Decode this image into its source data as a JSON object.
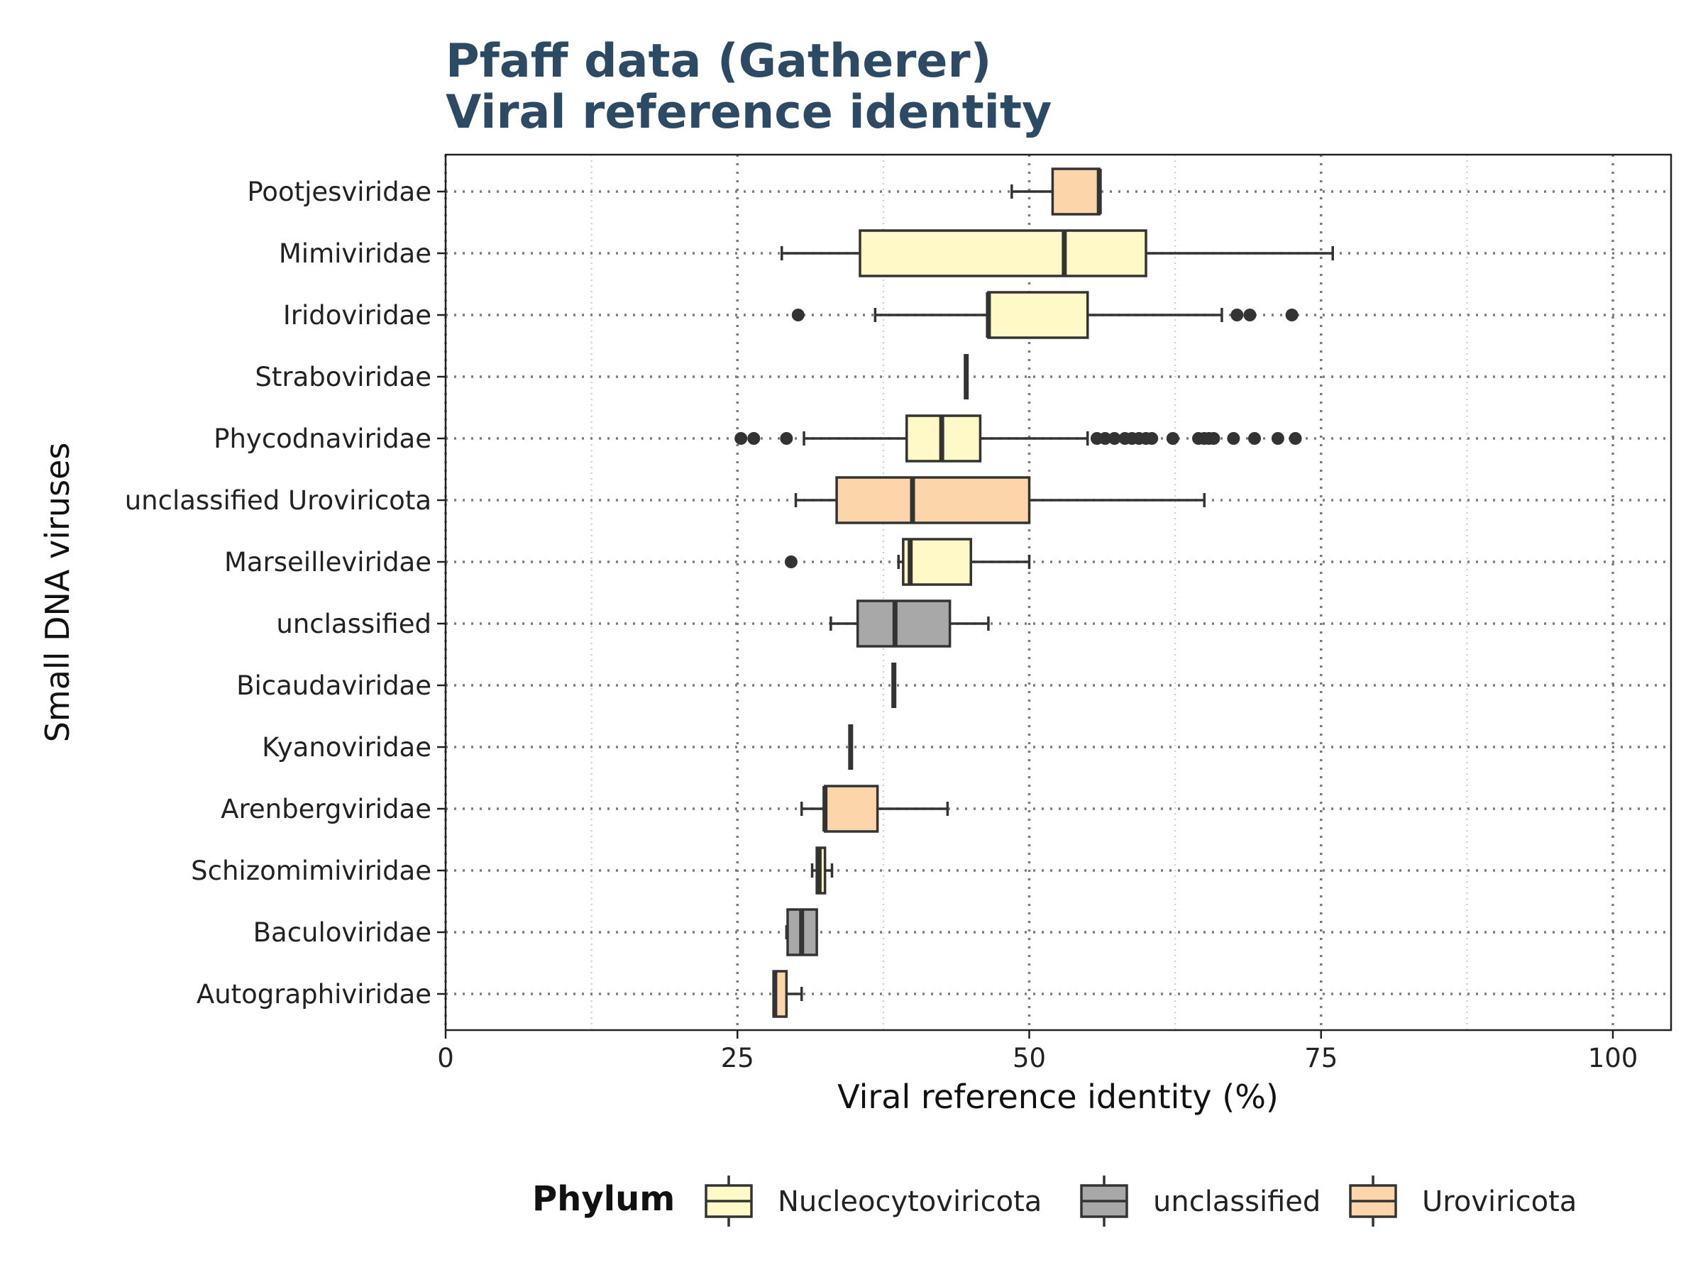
{
  "chart_data": {
    "type": "box",
    "title": [
      "Pfaff data (Gatherer)",
      "Viral reference identity"
    ],
    "xlabel": "Viral reference identity (%)",
    "ylabel": "Small DNA viruses",
    "xlim": [
      0,
      105
    ],
    "xticks": [
      0,
      25,
      50,
      75,
      100
    ],
    "xtick_labels": [
      "0",
      "25",
      "50",
      "75",
      "100"
    ],
    "grid": true,
    "legend": {
      "title": "Phylum",
      "position": "bottom",
      "entries": [
        {
          "name": "Nucleocytoviricota",
          "color": "#fff9c8"
        },
        {
          "name": "unclassified",
          "color": "#a8a8a8"
        },
        {
          "name": "Uroviricota",
          "color": "#fdd5ab"
        }
      ]
    },
    "categories": [
      {
        "name": "Pootjesviridae",
        "phylum": "Uroviricota",
        "min": 48.5,
        "q1": 52,
        "median": 56,
        "q3": 56,
        "max": 56,
        "outliers": []
      },
      {
        "name": "Mimiviridae",
        "phylum": "Nucleocytoviricota",
        "min": 28.8,
        "q1": 35.5,
        "median": 53,
        "q3": 60,
        "max": 76,
        "outliers": []
      },
      {
        "name": "Iridoviridae",
        "phylum": "Nucleocytoviricota",
        "min": 36.8,
        "q1": 46.5,
        "median": 46.5,
        "q3": 55,
        "max": 66.5,
        "outliers": [
          30.2,
          67.8,
          68.9,
          72.5
        ]
      },
      {
        "name": "Straboviridae",
        "phylum": "Nucleocytoviricota",
        "min": 44.6,
        "q1": 44.6,
        "median": 44.6,
        "q3": 44.6,
        "max": 44.6,
        "outliers": []
      },
      {
        "name": "Phycodnaviridae",
        "phylum": "Nucleocytoviricota",
        "min": 30.7,
        "q1": 39.5,
        "median": 42.5,
        "q3": 45.8,
        "max": 55,
        "outliers": [
          25.3,
          26.4,
          29.2,
          55.8,
          56.5,
          57.3,
          58.2,
          58.8,
          59.4,
          60,
          60.5,
          62.3,
          64.5,
          65,
          65.4,
          65.8,
          67.5,
          69.3,
          71.3,
          72.8
        ]
      },
      {
        "name": "unclassified Uroviricota",
        "phylum": "Uroviricota",
        "min": 30,
        "q1": 33.5,
        "median": 40,
        "q3": 50,
        "max": 65,
        "outliers": []
      },
      {
        "name": "Marseilleviridae",
        "phylum": "Nucleocytoviricota",
        "min": 38.8,
        "q1": 39.2,
        "median": 39.8,
        "q3": 45,
        "max": 50,
        "outliers": [
          29.6
        ]
      },
      {
        "name": "unclassified",
        "phylum": "unclassified",
        "min": 33,
        "q1": 35.3,
        "median": 38.5,
        "q3": 43.2,
        "max": 46.5,
        "outliers": []
      },
      {
        "name": "Bicaudaviridae",
        "phylum": "unclassified",
        "min": 38.4,
        "q1": 38.4,
        "median": 38.4,
        "q3": 38.4,
        "max": 38.4,
        "outliers": []
      },
      {
        "name": "Kyanoviridae",
        "phylum": "unclassified",
        "min": 34.7,
        "q1": 34.7,
        "median": 34.7,
        "q3": 34.7,
        "max": 34.7,
        "outliers": []
      },
      {
        "name": "Arenbergviridae",
        "phylum": "Uroviricota",
        "min": 30.5,
        "q1": 32.5,
        "median": 32.5,
        "q3": 37,
        "max": 43,
        "outliers": []
      },
      {
        "name": "Schizomimiviridae",
        "phylum": "Nucleocytoviricota",
        "min": 31.4,
        "q1": 31.8,
        "median": 32,
        "q3": 32.5,
        "max": 33.1,
        "outliers": []
      },
      {
        "name": "Baculoviridae",
        "phylum": "unclassified",
        "min": 29.2,
        "q1": 29.3,
        "median": 30.5,
        "q3": 31.8,
        "max": 31.8,
        "outliers": []
      },
      {
        "name": "Autographiviridae",
        "phylum": "Uroviricota",
        "min": 28.1,
        "q1": 28.1,
        "median": 28.2,
        "q3": 29.2,
        "max": 30.5,
        "outliers": []
      }
    ]
  }
}
